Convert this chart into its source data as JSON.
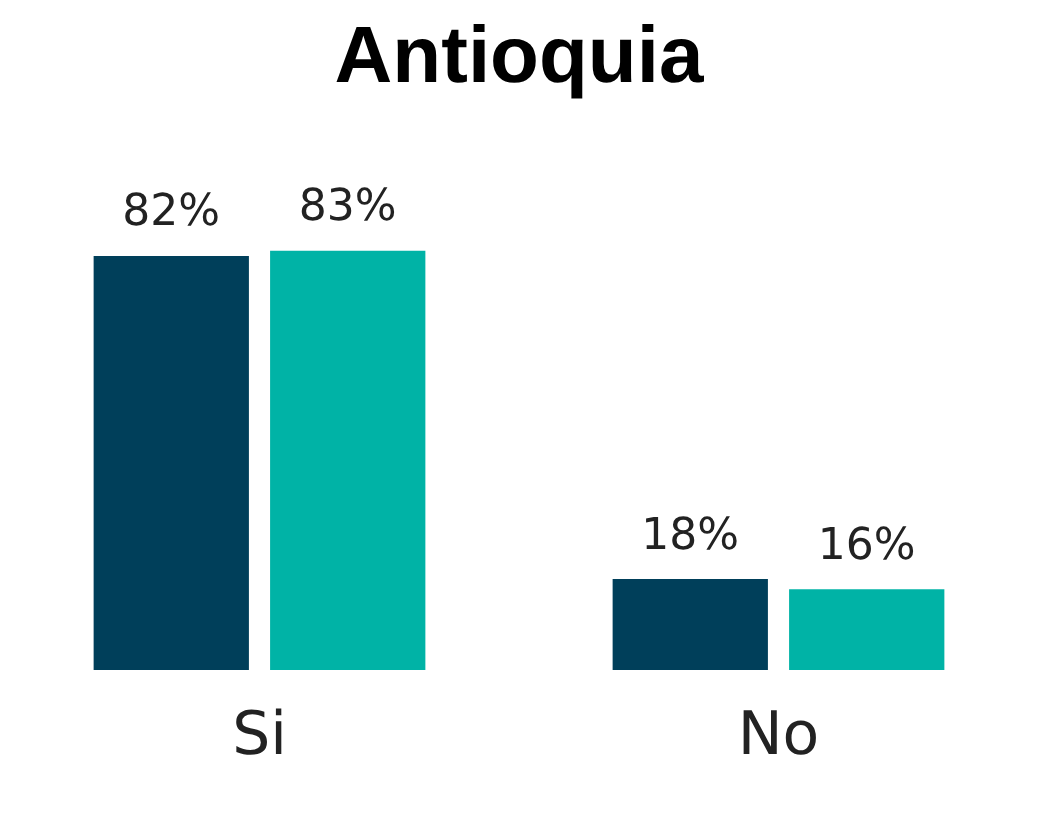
{
  "chart_data": {
    "type": "bar",
    "title": "Antioquia",
    "categories": [
      "Si",
      "No"
    ],
    "series": [
      {
        "color": "#003f5a",
        "values": [
          82,
          18
        ],
        "value_labels": [
          "82%",
          "18%"
        ]
      },
      {
        "color": "#00b3a6",
        "values": [
          83,
          16
        ],
        "value_labels": [
          "83%",
          "16%"
        ]
      }
    ],
    "grid": false,
    "legend": false
  }
}
